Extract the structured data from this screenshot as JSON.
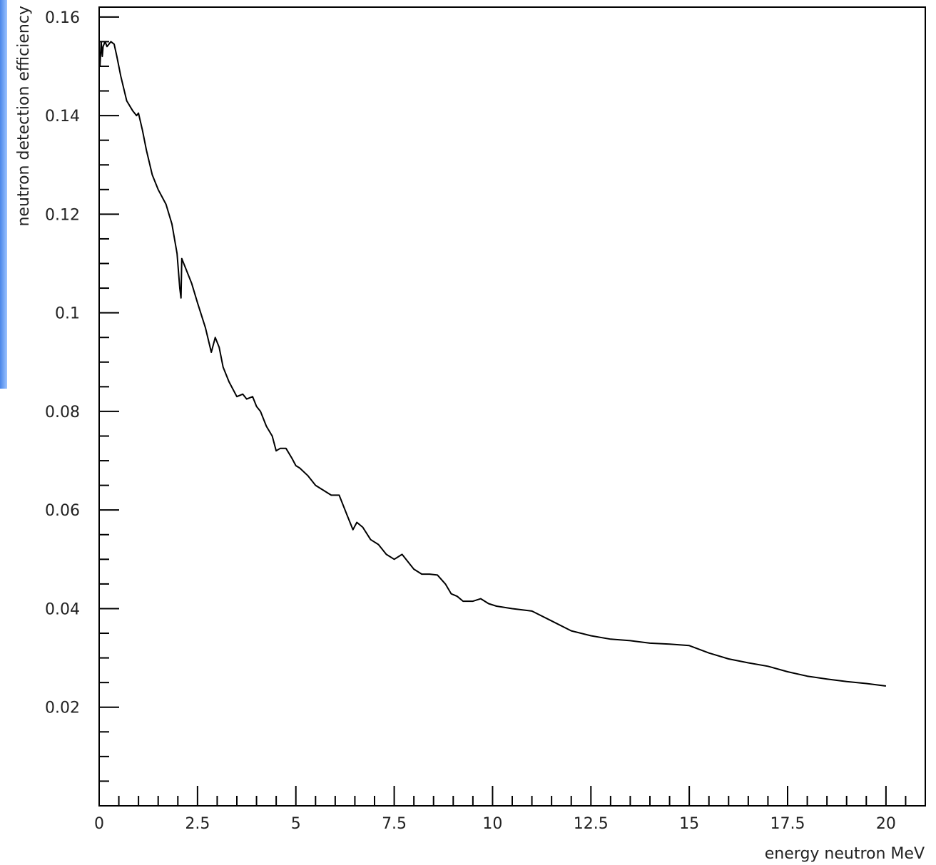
{
  "colors": {
    "background": "#ffffff",
    "frame": "#000000",
    "curve": "#000000",
    "text": "#222222",
    "side_accent": "#6fa4f5"
  },
  "chart_data": {
    "type": "line",
    "title": "",
    "xlabel": "energy neutron MeV",
    "ylabel": "neutron detection efficiency",
    "xlim": [
      0,
      21
    ],
    "ylim": [
      0,
      0.162
    ],
    "grid": false,
    "legend": "none",
    "x_ticks": [
      0,
      2.5,
      5,
      7.5,
      10,
      12.5,
      15,
      17.5,
      20
    ],
    "x_tick_labels": [
      "0",
      "2.5",
      "5",
      "7.5",
      "10",
      "12.5",
      "15",
      "17.5",
      "20"
    ],
    "y_ticks": [
      0.02,
      0.04,
      0.06,
      0.08,
      0.1,
      0.12,
      0.14,
      0.16
    ],
    "y_tick_labels": [
      "0.02",
      "0.04",
      "0.06",
      "0.08",
      "0.1",
      "0.12",
      "0.14",
      "0.16"
    ],
    "series": [
      {
        "name": "",
        "x": [
          0.0,
          0.02,
          0.05,
          0.08,
          0.1,
          0.15,
          0.2,
          0.3,
          0.38,
          0.45,
          0.55,
          0.7,
          0.85,
          0.95,
          1.0,
          1.1,
          1.2,
          1.35,
          1.5,
          1.7,
          1.85,
          1.98,
          2.05,
          2.08,
          2.1,
          2.2,
          2.35,
          2.5,
          2.7,
          2.85,
          2.95,
          3.05,
          3.15,
          3.3,
          3.5,
          3.65,
          3.75,
          3.9,
          4.0,
          4.1,
          4.25,
          4.4,
          4.5,
          4.6,
          4.75,
          4.9,
          5.0,
          5.1,
          5.3,
          5.5,
          5.7,
          5.9,
          6.1,
          6.2,
          6.3,
          6.45,
          6.55,
          6.7,
          6.9,
          7.1,
          7.3,
          7.5,
          7.7,
          7.9,
          8.0,
          8.2,
          8.4,
          8.6,
          8.8,
          8.95,
          9.1,
          9.25,
          9.5,
          9.7,
          9.9,
          10.1,
          10.5,
          11.0,
          11.5,
          12.0,
          12.5,
          13.0,
          13.5,
          14.0,
          14.5,
          15.0,
          15.5,
          16.0,
          16.5,
          17.0,
          17.5,
          18.0,
          18.5,
          19.0,
          19.5,
          20.0
        ],
        "y": [
          0.153,
          0.15,
          0.155,
          0.152,
          0.154,
          0.155,
          0.154,
          0.155,
          0.1545,
          0.152,
          0.148,
          0.143,
          0.141,
          0.14,
          0.1405,
          0.137,
          0.133,
          0.128,
          0.125,
          0.122,
          0.118,
          0.112,
          0.105,
          0.103,
          0.111,
          0.109,
          0.106,
          0.102,
          0.097,
          0.092,
          0.095,
          0.093,
          0.089,
          0.086,
          0.083,
          0.0835,
          0.0825,
          0.083,
          0.081,
          0.08,
          0.077,
          0.075,
          0.072,
          0.0725,
          0.0725,
          0.0705,
          0.069,
          0.0685,
          0.067,
          0.065,
          0.064,
          0.063,
          0.063,
          0.061,
          0.059,
          0.056,
          0.0575,
          0.0565,
          0.054,
          0.053,
          0.051,
          0.05,
          0.051,
          0.049,
          0.048,
          0.047,
          0.047,
          0.0468,
          0.045,
          0.043,
          0.0425,
          0.0415,
          0.0415,
          0.042,
          0.041,
          0.0405,
          0.04,
          0.0395,
          0.0375,
          0.0355,
          0.0345,
          0.0338,
          0.0335,
          0.033,
          0.0328,
          0.0325,
          0.031,
          0.0298,
          0.029,
          0.0283,
          0.0272,
          0.0263,
          0.0257,
          0.0252,
          0.0248,
          0.0243
        ]
      }
    ]
  }
}
